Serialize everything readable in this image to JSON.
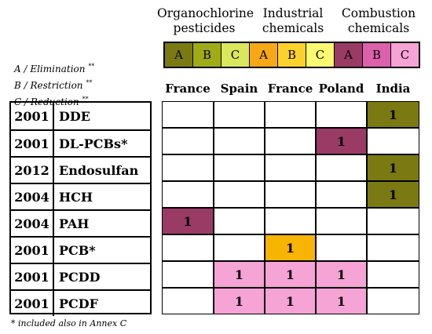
{
  "categories_header": [
    {
      "line1": "Organochlorine",
      "line2": "pesticides"
    },
    {
      "line1": "Industrial",
      "line2": "chemicals"
    },
    {
      "line1": "Combustion",
      "line2": "chemicals"
    }
  ],
  "legend": [
    {
      "label": "A",
      "color": "#7b7a12"
    },
    {
      "label": "B",
      "color": "#9fac16"
    },
    {
      "label": "C",
      "color": "#d9e75c"
    },
    {
      "label": "A",
      "color": "#f7a814"
    },
    {
      "label": "B",
      "color": "#fbd12c"
    },
    {
      "label": "C",
      "color": "#fafa70"
    },
    {
      "label": "A",
      "color": "#9a3b65"
    },
    {
      "label": "B",
      "color": "#dc61ad"
    },
    {
      "label": "C",
      "color": "#f6a3d6"
    }
  ],
  "annex_key": {
    "a_label": "A / Elimination",
    "a_marker": "**",
    "b_label": "B / Restriction",
    "b_marker": "**",
    "c_label": "C / Reduction",
    "c_marker": "**"
  },
  "footnote": "* included also in Annex C",
  "chart_data": {
    "type": "table",
    "columns": [
      "France",
      "Spain",
      "France",
      "Poland",
      "India"
    ],
    "rows": [
      {
        "year": "2001",
        "name": "DDE"
      },
      {
        "year": "2001",
        "name": "DL-PCBs*"
      },
      {
        "year": "2012",
        "name": "Endosulfan"
      },
      {
        "year": "2004",
        "name": "HCH"
      },
      {
        "year": "2004",
        "name": "PAH"
      },
      {
        "year": "2001",
        "name": "PCB*"
      },
      {
        "year": "2001",
        "name": "PCDD"
      },
      {
        "year": "2001",
        "name": "PCDF"
      }
    ],
    "values": [
      [
        null,
        null,
        null,
        null,
        1
      ],
      [
        null,
        null,
        null,
        1,
        null
      ],
      [
        null,
        null,
        null,
        null,
        1
      ],
      [
        null,
        null,
        null,
        null,
        1
      ],
      [
        1,
        null,
        null,
        null,
        null
      ],
      [
        null,
        null,
        1,
        null,
        null
      ],
      [
        null,
        1,
        1,
        1,
        null
      ],
      [
        null,
        1,
        1,
        1,
        null
      ]
    ],
    "cell_colors": [
      [
        null,
        null,
        null,
        null,
        "#7b7a12"
      ],
      [
        null,
        null,
        null,
        "#9a3b65",
        null
      ],
      [
        null,
        null,
        null,
        null,
        "#7b7a12"
      ],
      [
        null,
        null,
        null,
        null,
        "#7b7a12"
      ],
      [
        "#9a3b65",
        null,
        null,
        null,
        null
      ],
      [
        null,
        null,
        "#f7b400",
        null,
        null
      ],
      [
        null,
        "#f6a3d6",
        "#f6a3d6",
        "#f6a3d6",
        null
      ],
      [
        null,
        "#f6a3d6",
        "#f6a3d6",
        "#f6a3d6",
        null
      ]
    ]
  }
}
